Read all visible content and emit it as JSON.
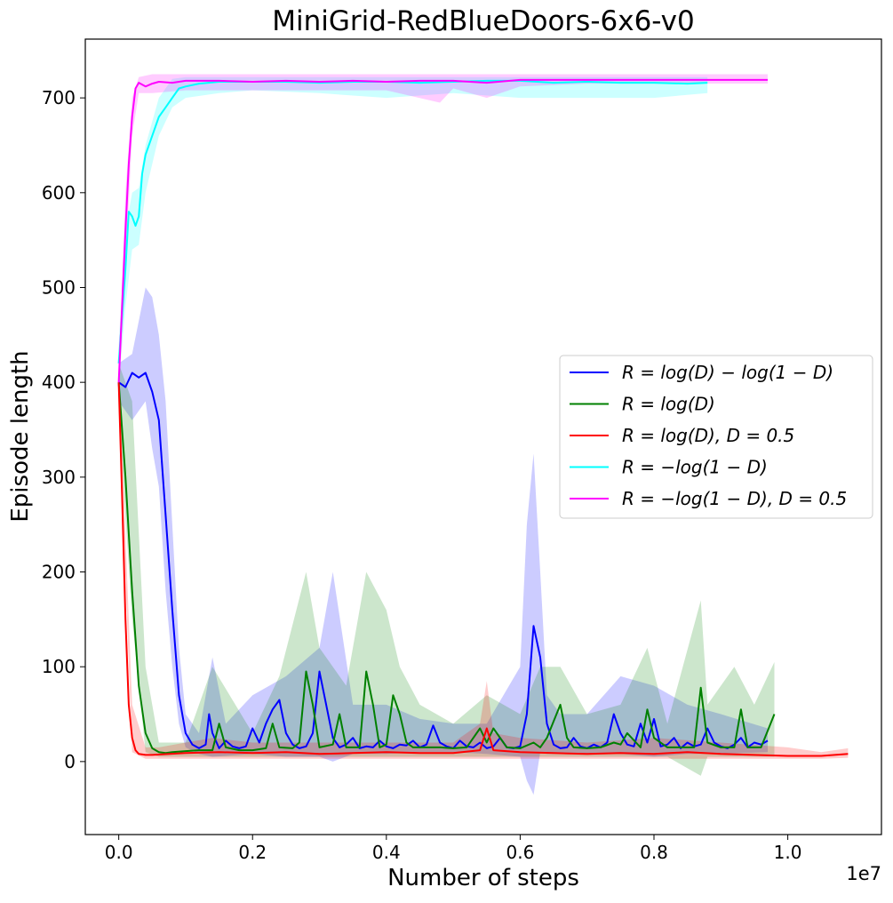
{
  "chart_data": {
    "type": "line",
    "title": "MiniGrid-RedBlueDoors-6x6-v0",
    "xlabel": "Number of steps",
    "ylabel": "Episode length",
    "x_scale_label": "1e7",
    "xlim": [
      -0.05,
      1.14
    ],
    "ylim": [
      -77,
      762
    ],
    "x_ticks": [
      0.0,
      0.2,
      0.4,
      0.6,
      0.8,
      1.0
    ],
    "x_tick_labels": [
      "0.0",
      "0.2",
      "0.4",
      "0.6",
      "0.8",
      "1.0"
    ],
    "y_ticks": [
      0,
      100,
      200,
      300,
      400,
      500,
      600,
      700
    ],
    "y_tick_labels": [
      "0",
      "100",
      "200",
      "300",
      "400",
      "500",
      "600",
      "700"
    ],
    "legend_position": "center-right",
    "series": [
      {
        "name": "R = log(D) − log(1 − D)",
        "color": "#0000ff",
        "x": [
          0.0,
          0.01,
          0.02,
          0.03,
          0.04,
          0.05,
          0.06,
          0.07,
          0.08,
          0.09,
          0.1,
          0.11,
          0.12,
          0.13,
          0.135,
          0.14,
          0.15,
          0.16,
          0.17,
          0.18,
          0.19,
          0.2,
          0.21,
          0.22,
          0.23,
          0.24,
          0.25,
          0.26,
          0.27,
          0.28,
          0.29,
          0.3,
          0.31,
          0.32,
          0.33,
          0.34,
          0.35,
          0.36,
          0.37,
          0.38,
          0.39,
          0.4,
          0.41,
          0.42,
          0.43,
          0.44,
          0.45,
          0.46,
          0.47,
          0.48,
          0.49,
          0.5,
          0.51,
          0.52,
          0.53,
          0.54,
          0.55,
          0.56,
          0.57,
          0.58,
          0.59,
          0.6,
          0.61,
          0.62,
          0.63,
          0.64,
          0.65,
          0.66,
          0.67,
          0.68,
          0.69,
          0.7,
          0.71,
          0.72,
          0.73,
          0.74,
          0.75,
          0.76,
          0.77,
          0.78,
          0.79,
          0.8,
          0.81,
          0.82,
          0.83,
          0.84,
          0.85,
          0.86,
          0.87,
          0.88,
          0.89,
          0.9,
          0.91,
          0.92,
          0.93,
          0.94,
          0.95,
          0.96,
          0.97
        ],
        "y": [
          400,
          395,
          410,
          405,
          410,
          390,
          360,
          260,
          160,
          70,
          30,
          18,
          14,
          18,
          50,
          30,
          14,
          22,
          16,
          14,
          16,
          35,
          20,
          40,
          55,
          65,
          30,
          18,
          14,
          16,
          30,
          95,
          60,
          25,
          15,
          18,
          25,
          14,
          16,
          15,
          22,
          16,
          14,
          18,
          17,
          22,
          15,
          18,
          38,
          20,
          16,
          14,
          22,
          16,
          15,
          20,
          14,
          16,
          25,
          15,
          14,
          16,
          50,
          143,
          110,
          40,
          18,
          14,
          15,
          25,
          16,
          14,
          18,
          15,
          20,
          50,
          30,
          18,
          16,
          40,
          20,
          45,
          16,
          18,
          25,
          14,
          20,
          16,
          18,
          35,
          20,
          16,
          14,
          18,
          25,
          15,
          20,
          18,
          22
        ]
      },
      {
        "name": "R = log(D)",
        "color": "#008000",
        "x": [
          0.0,
          0.01,
          0.02,
          0.03,
          0.04,
          0.05,
          0.06,
          0.07,
          0.08,
          0.1,
          0.12,
          0.14,
          0.15,
          0.16,
          0.18,
          0.2,
          0.22,
          0.23,
          0.24,
          0.26,
          0.27,
          0.28,
          0.29,
          0.3,
          0.32,
          0.33,
          0.34,
          0.36,
          0.37,
          0.38,
          0.39,
          0.4,
          0.41,
          0.42,
          0.43,
          0.44,
          0.46,
          0.48,
          0.5,
          0.52,
          0.54,
          0.55,
          0.56,
          0.58,
          0.6,
          0.62,
          0.63,
          0.64,
          0.66,
          0.67,
          0.68,
          0.7,
          0.72,
          0.74,
          0.75,
          0.76,
          0.78,
          0.79,
          0.8,
          0.82,
          0.84,
          0.86,
          0.87,
          0.88,
          0.9,
          0.92,
          0.93,
          0.94,
          0.96,
          0.98
        ],
        "y": [
          400,
          300,
          180,
          80,
          30,
          14,
          10,
          9,
          10,
          11,
          12,
          12,
          40,
          15,
          12,
          12,
          14,
          40,
          15,
          14,
          20,
          95,
          60,
          15,
          18,
          50,
          15,
          15,
          95,
          60,
          15,
          18,
          70,
          50,
          20,
          15,
          15,
          15,
          14,
          15,
          35,
          20,
          35,
          15,
          14,
          20,
          15,
          25,
          60,
          25,
          15,
          14,
          15,
          20,
          18,
          30,
          15,
          55,
          25,
          15,
          15,
          15,
          78,
          20,
          15,
          15,
          55,
          15,
          15,
          50
        ]
      },
      {
        "name": "R = log(D), D = 0.5",
        "color": "#ff0000",
        "x": [
          0.0,
          0.005,
          0.01,
          0.015,
          0.02,
          0.025,
          0.03,
          0.04,
          0.05,
          0.1,
          0.15,
          0.2,
          0.25,
          0.3,
          0.35,
          0.4,
          0.45,
          0.5,
          0.54,
          0.55,
          0.56,
          0.6,
          0.65,
          0.7,
          0.75,
          0.8,
          0.85,
          0.9,
          0.95,
          1.0,
          1.05,
          1.09
        ],
        "y": [
          400,
          280,
          150,
          60,
          25,
          12,
          8,
          7,
          7,
          9,
          10,
          9,
          10,
          8,
          9,
          10,
          9,
          9,
          12,
          35,
          12,
          10,
          9,
          8,
          9,
          8,
          10,
          8,
          7,
          6,
          6,
          8
        ]
      },
      {
        "name": "R = −log(1 − D)",
        "color": "#00ffff",
        "x": [
          0.0,
          0.01,
          0.015,
          0.02,
          0.025,
          0.03,
          0.035,
          0.04,
          0.05,
          0.06,
          0.07,
          0.08,
          0.09,
          0.1,
          0.12,
          0.15,
          0.2,
          0.25,
          0.3,
          0.35,
          0.4,
          0.45,
          0.5,
          0.55,
          0.6,
          0.65,
          0.7,
          0.75,
          0.8,
          0.85,
          0.88
        ],
        "y": [
          420,
          520,
          580,
          575,
          565,
          575,
          620,
          640,
          660,
          680,
          690,
          700,
          710,
          712,
          715,
          717,
          717,
          717,
          716,
          717,
          717,
          716,
          717,
          718,
          718,
          716,
          717,
          716,
          716,
          715,
          716
        ]
      },
      {
        "name": "R = −log(1 − D), D = 0.5",
        "color": "#ff00ff",
        "x": [
          0.0,
          0.005,
          0.01,
          0.015,
          0.02,
          0.025,
          0.03,
          0.04,
          0.05,
          0.06,
          0.08,
          0.1,
          0.15,
          0.2,
          0.25,
          0.3,
          0.35,
          0.4,
          0.45,
          0.5,
          0.55,
          0.6,
          0.65,
          0.7,
          0.75,
          0.8,
          0.85,
          0.9,
          0.95,
          0.97
        ],
        "y": [
          400,
          480,
          560,
          630,
          680,
          710,
          716,
          712,
          715,
          717,
          716,
          718,
          718,
          717,
          718,
          717,
          718,
          717,
          718,
          718,
          716,
          719,
          719,
          719,
          719,
          719,
          719,
          719,
          719,
          719
        ]
      }
    ],
    "bands": [
      {
        "color": "#0000ff",
        "x": [
          0.0,
          0.02,
          0.04,
          0.05,
          0.06,
          0.07,
          0.08,
          0.09,
          0.1,
          0.12,
          0.14,
          0.16,
          0.2,
          0.25,
          0.3,
          0.32,
          0.35,
          0.4,
          0.45,
          0.5,
          0.55,
          0.6,
          0.61,
          0.62,
          0.63,
          0.64,
          0.66,
          0.7,
          0.75,
          0.8,
          0.85,
          0.9,
          0.97
        ],
        "lower": [
          380,
          360,
          380,
          330,
          290,
          180,
          100,
          40,
          15,
          8,
          5,
          6,
          8,
          5,
          5,
          0,
          8,
          8,
          10,
          10,
          8,
          5,
          -20,
          -35,
          10,
          8,
          8,
          8,
          8,
          5,
          8,
          8,
          10
        ],
        "upper": [
          420,
          430,
          500,
          490,
          450,
          380,
          250,
          120,
          50,
          30,
          110,
          40,
          70,
          90,
          120,
          200,
          60,
          60,
          45,
          40,
          40,
          100,
          250,
          325,
          200,
          70,
          50,
          50,
          90,
          80,
          60,
          50,
          35
        ]
      },
      {
        "color": "#008000",
        "x": [
          0.0,
          0.02,
          0.04,
          0.06,
          0.1,
          0.14,
          0.2,
          0.24,
          0.28,
          0.3,
          0.34,
          0.37,
          0.4,
          0.42,
          0.45,
          0.5,
          0.55,
          0.6,
          0.63,
          0.66,
          0.7,
          0.75,
          0.79,
          0.82,
          0.87,
          0.88,
          0.92,
          0.95,
          0.98
        ],
        "lower": [
          370,
          150,
          10,
          5,
          5,
          5,
          5,
          5,
          5,
          5,
          5,
          5,
          5,
          5,
          5,
          5,
          5,
          5,
          5,
          5,
          5,
          5,
          5,
          5,
          -15,
          5,
          5,
          5,
          5
        ],
        "upper": [
          420,
          380,
          100,
          20,
          20,
          100,
          30,
          90,
          200,
          120,
          80,
          200,
          160,
          100,
          60,
          40,
          70,
          50,
          100,
          100,
          50,
          60,
          120,
          40,
          170,
          60,
          100,
          60,
          105
        ]
      },
      {
        "color": "#ff0000",
        "x": [
          0.0,
          0.02,
          0.04,
          0.06,
          0.1,
          0.14,
          0.2,
          0.3,
          0.4,
          0.5,
          0.54,
          0.55,
          0.56,
          0.6,
          0.7,
          0.8,
          0.9,
          1.0,
          1.05,
          1.09
        ],
        "lower": [
          380,
          10,
          3,
          3,
          3,
          3,
          3,
          3,
          3,
          3,
          3,
          3,
          3,
          3,
          3,
          3,
          3,
          3,
          3,
          4
        ],
        "upper": [
          420,
          60,
          15,
          15,
          20,
          25,
          20,
          20,
          20,
          20,
          40,
          85,
          30,
          25,
          20,
          25,
          20,
          15,
          10,
          14
        ]
      },
      {
        "color": "#00ffff",
        "x": [
          0.0,
          0.01,
          0.02,
          0.03,
          0.04,
          0.06,
          0.08,
          0.1,
          0.15,
          0.2,
          0.3,
          0.4,
          0.5,
          0.6,
          0.7,
          0.8,
          0.88
        ],
        "lower": [
          400,
          480,
          540,
          545,
          600,
          660,
          690,
          700,
          705,
          708,
          705,
          700,
          705,
          700,
          700,
          700,
          705
        ],
        "upper": [
          440,
          560,
          600,
          605,
          650,
          700,
          720,
          722,
          722,
          722,
          722,
          722,
          722,
          722,
          722,
          722,
          722
        ]
      },
      {
        "color": "#ff00ff",
        "x": [
          0.0,
          0.01,
          0.02,
          0.03,
          0.05,
          0.1,
          0.2,
          0.3,
          0.4,
          0.48,
          0.5,
          0.55,
          0.6,
          0.7,
          0.8,
          0.9,
          0.97
        ],
        "lower": [
          380,
          520,
          660,
          705,
          705,
          708,
          708,
          708,
          708,
          695,
          710,
          700,
          712,
          715,
          715,
          715,
          715
        ],
        "upper": [
          420,
          600,
          700,
          722,
          725,
          725,
          725,
          725,
          725,
          725,
          725,
          725,
          725,
          725,
          725,
          725,
          725
        ]
      }
    ]
  }
}
